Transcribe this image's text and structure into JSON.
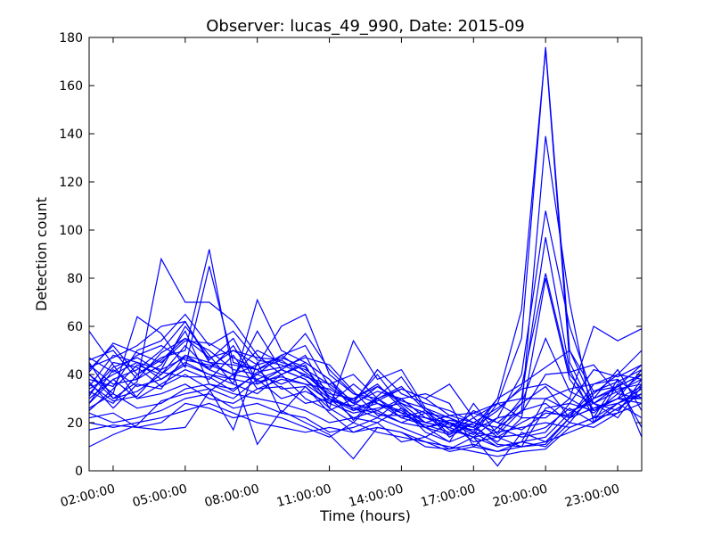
{
  "chart_data": {
    "type": "line",
    "title": "Observer: lucas_49_990, Date: 2015-09",
    "xlabel": "Time (hours)",
    "ylabel": "Detection count",
    "xlim": [
      1,
      24
    ],
    "ylim": [
      0,
      180
    ],
    "x_ticks": [
      2,
      5,
      8,
      11,
      14,
      17,
      20,
      23
    ],
    "x_tick_labels": [
      "02:00:00",
      "05:00:00",
      "08:00:00",
      "11:00:00",
      "14:00:00",
      "17:00:00",
      "20:00:00",
      "23:00:00"
    ],
    "y_ticks": [
      0,
      20,
      40,
      60,
      80,
      100,
      120,
      140,
      160,
      180
    ],
    "y_tick_labels": [
      "0",
      "20",
      "40",
      "60",
      "80",
      "100",
      "120",
      "140",
      "160",
      "180"
    ],
    "grid": false,
    "legend": "none",
    "line_color": "#0000ff",
    "x": [
      1,
      2,
      3,
      4,
      5,
      6,
      7,
      8,
      9,
      10,
      11,
      12,
      13,
      14,
      15,
      16,
      17,
      18,
      19,
      20,
      21,
      22,
      23,
      24
    ],
    "series": [
      {
        "values": [
          45,
          30,
          37,
          88,
          70,
          70,
          62,
          48,
          40,
          45,
          38,
          28,
          33,
          30,
          22,
          18,
          24,
          28,
          55,
          176,
          50,
          28,
          33,
          38
        ]
      },
      {
        "values": [
          42,
          52,
          40,
          47,
          50,
          92,
          40,
          38,
          42,
          48,
          30,
          22,
          25,
          20,
          18,
          20,
          16,
          30,
          67,
          175,
          45,
          25,
          30,
          35
        ]
      },
      {
        "values": [
          40,
          32,
          64,
          57,
          43,
          85,
          45,
          42,
          46,
          57,
          42,
          32,
          28,
          25,
          18,
          12,
          28,
          15,
          25,
          139,
          70,
          20,
          28,
          32
        ]
      },
      {
        "values": [
          38,
          35,
          50,
          54,
          65,
          52,
          58,
          46,
          44,
          40,
          32,
          30,
          35,
          28,
          20,
          18,
          14,
          22,
          40,
          108,
          60,
          30,
          35,
          40
        ]
      },
      {
        "values": [
          35,
          48,
          45,
          42,
          60,
          48,
          36,
          71,
          50,
          45,
          38,
          25,
          30,
          22,
          25,
          15,
          20,
          18,
          30,
          97,
          42,
          22,
          38,
          30
        ]
      },
      {
        "values": [
          33,
          28,
          40,
          46,
          55,
          50,
          42,
          40,
          48,
          52,
          35,
          28,
          25,
          30,
          22,
          20,
          18,
          25,
          35,
          82,
          40,
          28,
          25,
          36
        ]
      },
      {
        "values": [
          30,
          38,
          42,
          50,
          62,
          45,
          40,
          44,
          60,
          65,
          40,
          32,
          30,
          35,
          25,
          20,
          15,
          28,
          22,
          80,
          38,
          25,
          30,
          28
        ]
      },
      {
        "values": [
          28,
          42,
          35,
          38,
          45,
          40,
          38,
          58,
          42,
          38,
          30,
          25,
          28,
          24,
          18,
          15,
          25,
          20,
          28,
          55,
          33,
          28,
          22,
          35
        ]
      },
      {
        "values": [
          25,
          34,
          44,
          40,
          48,
          42,
          52,
          36,
          40,
          44,
          26,
          54,
          38,
          42,
          26,
          22,
          18,
          30,
          36,
          43,
          50,
          33,
          35,
          40
        ]
      },
      {
        "values": [
          58,
          44,
          30,
          36,
          42,
          38,
          48,
          34,
          38,
          36,
          34,
          28,
          42,
          32,
          28,
          25,
          20,
          16,
          28,
          35,
          22,
          30,
          42,
          25
        ]
      },
      {
        "values": [
          47,
          41,
          48,
          52,
          46,
          44,
          40,
          50,
          45,
          42,
          36,
          40,
          30,
          34,
          30,
          36,
          22,
          28,
          30,
          30,
          25,
          28,
          35,
          44
        ]
      },
      {
        "values": [
          44,
          36,
          38,
          44,
          58,
          36,
          34,
          40,
          36,
          40,
          31,
          26,
          22,
          30,
          32,
          28,
          10,
          18,
          25,
          28,
          20,
          32,
          40,
          38
        ]
      },
      {
        "values": [
          40,
          30,
          33,
          40,
          52,
          42,
          38,
          36,
          42,
          38,
          28,
          24,
          26,
          28,
          24,
          22,
          16,
          14,
          20,
          25,
          22,
          26,
          28,
          34
        ]
      },
      {
        "values": [
          37,
          26,
          36,
          34,
          48,
          45,
          44,
          42,
          34,
          35,
          26,
          20,
          30,
          24,
          22,
          20,
          18,
          12,
          22,
          22,
          30,
          24,
          32,
          30
        ]
      },
      {
        "values": [
          34,
          40,
          45,
          38,
          44,
          40,
          36,
          32,
          40,
          30,
          25,
          30,
          36,
          26,
          20,
          18,
          14,
          16,
          18,
          20,
          18,
          22,
          24,
          28
        ]
      },
      {
        "values": [
          31,
          45,
          43,
          35,
          40,
          34,
          30,
          38,
          30,
          33,
          28,
          36,
          28,
          22,
          19,
          16,
          22,
          14,
          15,
          18,
          26,
          20,
          26,
          32
        ]
      },
      {
        "values": [
          28,
          38,
          30,
          32,
          36,
          30,
          28,
          34,
          35,
          28,
          30,
          26,
          24,
          20,
          24,
          14,
          20,
          18,
          14,
          16,
          28,
          25,
          30,
          30
        ]
      },
      {
        "values": [
          26,
          32,
          26,
          28,
          34,
          36,
          32,
          30,
          28,
          25,
          20,
          22,
          20,
          26,
          16,
          12,
          16,
          10,
          12,
          14,
          24,
          30,
          34,
          36
        ]
      },
      {
        "values": [
          24,
          20,
          22,
          25,
          30,
          32,
          26,
          28,
          24,
          22,
          16,
          18,
          22,
          18,
          14,
          20,
          12,
          14,
          10,
          12,
          22,
          26,
          30,
          42
        ]
      },
      {
        "values": [
          22,
          24,
          18,
          20,
          28,
          26,
          22,
          24,
          22,
          18,
          14,
          20,
          16,
          14,
          12,
          8,
          10,
          8,
          12,
          10,
          20,
          18,
          24,
          38
        ]
      },
      {
        "values": [
          20,
          18,
          20,
          22,
          25,
          28,
          24,
          20,
          18,
          16,
          18,
          16,
          18,
          16,
          12,
          10,
          8,
          6,
          8,
          9,
          18,
          22,
          28,
          22
        ]
      },
      {
        "values": [
          17,
          19,
          18,
          17,
          18,
          33,
          40,
          11,
          25,
          20,
          15,
          5,
          18,
          16,
          10,
          9,
          14,
          2,
          16,
          12,
          16,
          20,
          36,
          18
        ]
      },
      {
        "values": [
          10,
          15,
          19,
          29,
          32,
          34,
          17,
          45,
          24,
          35,
          24,
          16,
          20,
          12,
          14,
          9,
          11,
          8,
          10,
          11,
          22,
          36,
          38,
          14
        ]
      },
      {
        "values": [
          46,
          50,
          38,
          49,
          55,
          47,
          50,
          44,
          47,
          43,
          30,
          26,
          29,
          34,
          30,
          23,
          20,
          26,
          34,
          36,
          30,
          60,
          54,
          59
        ]
      },
      {
        "values": [
          41,
          53,
          49,
          45,
          54,
          53,
          47,
          42,
          48,
          41,
          33,
          21,
          31,
          39,
          25,
          17,
          14,
          10,
          12,
          30,
          34,
          36,
          40,
          50
        ]
      },
      {
        "values": [
          36,
          29,
          31,
          42,
          47,
          43,
          50,
          47,
          46,
          39,
          36,
          29,
          40,
          27,
          18,
          21,
          19,
          11,
          10,
          26,
          28,
          42,
          39,
          44
        ]
      },
      {
        "values": [
          32,
          43,
          47,
          41,
          39,
          39,
          33,
          41,
          43,
          47,
          44,
          33,
          23,
          23,
          20,
          23,
          24,
          20,
          17,
          24,
          23,
          33,
          37,
          42
        ]
      },
      {
        "values": [
          43,
          47,
          52,
          60,
          62,
          46,
          55,
          37,
          39,
          36,
          29,
          27,
          35,
          29,
          26,
          19,
          17,
          22,
          24,
          40,
          41,
          44,
          32,
          40
        ]
      }
    ]
  }
}
